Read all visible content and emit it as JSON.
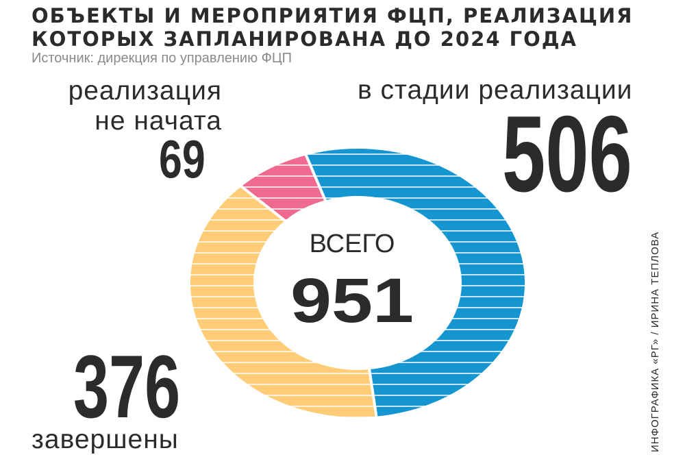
{
  "header": {
    "title_line1": "ОБЪЕКТЫ И МЕРОПРИЯТИЯ ФЦП, РЕАЛИЗАЦИЯ",
    "title_line2": "КОТОРЫХ ЗАПЛАНИРОВАНА ДО 2024 ГОДА",
    "source": "Источник: дирекция по управлению ФЦП"
  },
  "labels": {
    "not_started_line1": "реализация",
    "not_started_line2": "не начата",
    "in_progress": "в стадии реализации",
    "completed": "завершены"
  },
  "center": {
    "caption": "ВСЕГО",
    "total": "951"
  },
  "credit": "ИНФОГРАФИКА «РГ» / ИРИНА ТЕПЛОВА",
  "chart_data": {
    "type": "pie",
    "donut": true,
    "total": 951,
    "categories": [
      "в стадии реализации",
      "завершены",
      "реализация не начата"
    ],
    "values": [
      506,
      376,
      69
    ],
    "value_labels": [
      "506",
      "376",
      "69"
    ],
    "colors": [
      "#1596d0",
      "#ffcc77",
      "#ef6a90"
    ]
  }
}
